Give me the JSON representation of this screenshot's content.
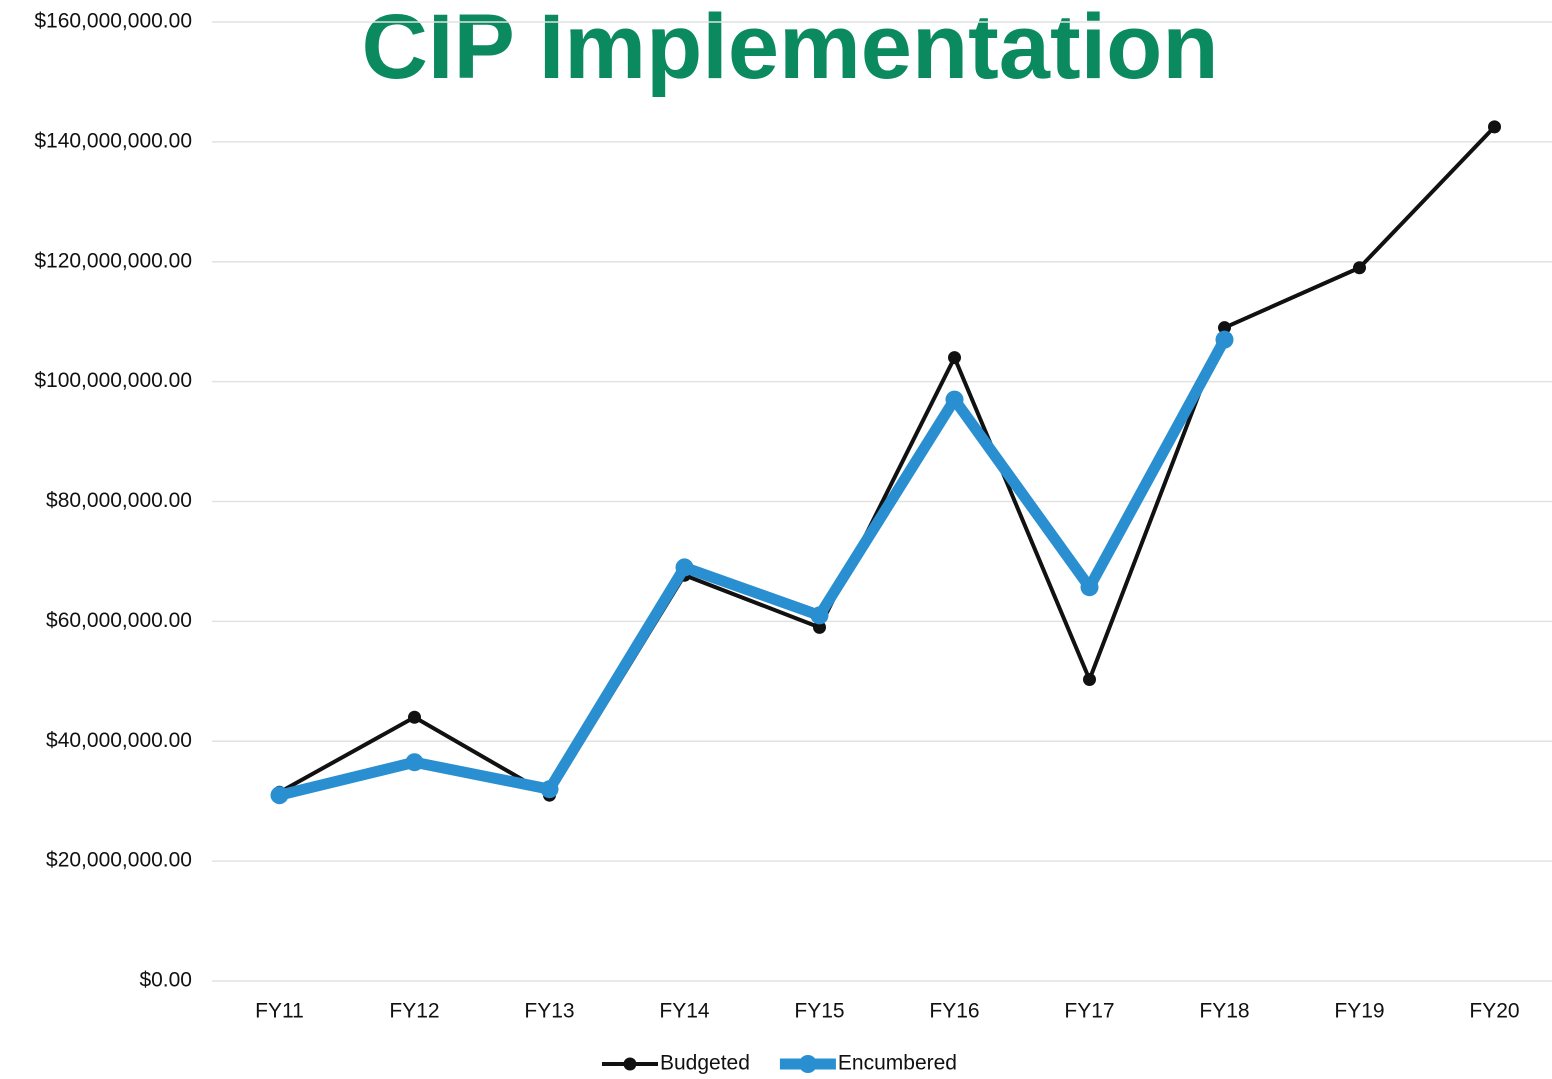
{
  "chart_data": {
    "type": "line",
    "title": "CIP Implementation",
    "categories": [
      "FY11",
      "FY12",
      "FY13",
      "FY14",
      "FY15",
      "FY16",
      "FY17",
      "FY18",
      "FY19",
      "FY20"
    ],
    "series": [
      {
        "name": "Budgeted",
        "color": "#111111",
        "values": [
          31500000,
          44000000,
          31000000,
          67700000,
          59000000,
          104000000,
          50300000,
          109000000,
          119000000,
          142500000
        ]
      },
      {
        "name": "Encumbered",
        "color": "#2a8fd0",
        "values": [
          31000000,
          36500000,
          32000000,
          69000000,
          61000000,
          97000000,
          65700000,
          107000000,
          null,
          null
        ]
      }
    ],
    "ylim": [
      0,
      160000000
    ],
    "yticks": [
      {
        "value": 0,
        "label": "$0.00"
      },
      {
        "value": 20000000,
        "label": "$20,000,000.00"
      },
      {
        "value": 40000000,
        "label": "$40,000,000.00"
      },
      {
        "value": 60000000,
        "label": "$60,000,000.00"
      },
      {
        "value": 80000000,
        "label": "$80,000,000.00"
      },
      {
        "value": 100000000,
        "label": "$100,000,000.00"
      },
      {
        "value": 120000000,
        "label": "$120,000,000.00"
      },
      {
        "value": 140000000,
        "label": "$140,000,000.00"
      },
      {
        "value": 160000000,
        "label": "$160,000,000.00"
      }
    ],
    "grid": true,
    "legend": "bottom"
  }
}
